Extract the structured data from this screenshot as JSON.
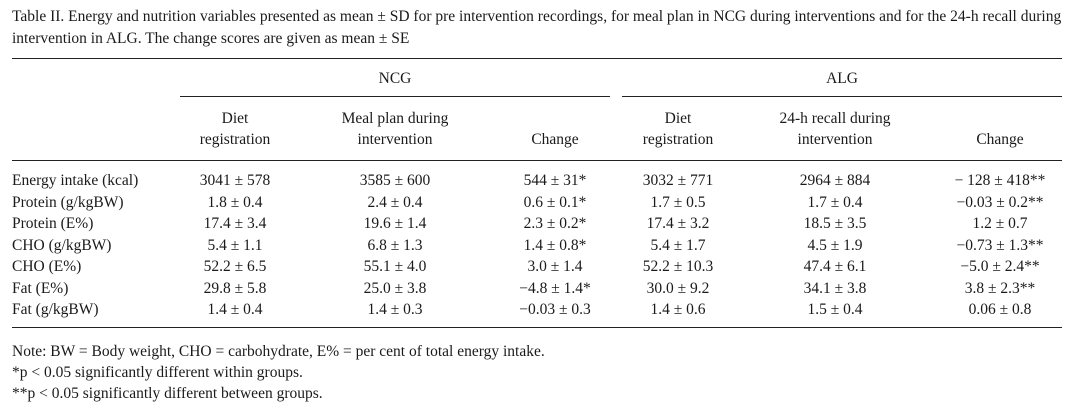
{
  "caption": "Table II. Energy and nutrition variables presented as mean ± SD for pre intervention recordings, for meal plan in NCG during interventions and for the 24-h recall during intervention in ALG. The change scores are given as mean ± SE",
  "groups": [
    "NCG",
    "ALG"
  ],
  "columns": [
    {
      "line1": "Diet",
      "line2": "registration"
    },
    {
      "line1": "Meal plan during",
      "line2": "intervention"
    },
    {
      "line1": "",
      "line2": "Change"
    },
    {
      "line1": "Diet",
      "line2": "registration"
    },
    {
      "line1": "24-h recall during",
      "line2": "intervention"
    },
    {
      "line1": "",
      "line2": "Change"
    }
  ],
  "rows": [
    {
      "label": "Energy intake (kcal)",
      "values": [
        "3041 ± 578",
        "3585 ± 600",
        "544 ± 31*",
        "3032 ± 771",
        "2964 ± 884",
        "− 128 ± 418**"
      ]
    },
    {
      "label": "Protein (g/kgBW)",
      "values": [
        "1.8 ± 0.4",
        "2.4 ± 0.4",
        "0.6 ± 0.1*",
        "1.7 ± 0.5",
        "1.7 ± 0.4",
        "−0.03 ± 0.2**"
      ]
    },
    {
      "label": "Protein (E%)",
      "values": [
        "17.4 ± 3.4",
        "19.6 ± 1.4",
        "2.3 ± 0.2*",
        "17.4 ± 3.2",
        "18.5 ± 3.5",
        "1.2 ± 0.7"
      ]
    },
    {
      "label": "CHO (g/kgBW)",
      "values": [
        "5.4 ± 1.1",
        "6.8 ± 1.3",
        "1.4 ± 0.8*",
        "5.4 ± 1.7",
        "4.5 ± 1.9",
        "−0.73 ± 1.3**"
      ]
    },
    {
      "label": "CHO (E%)",
      "values": [
        "52.2 ± 6.5",
        "55.1 ± 4.0",
        "3.0 ± 1.4",
        "52.2 ± 10.3",
        "47.4 ± 6.1",
        "−5.0 ± 2.4**"
      ]
    },
    {
      "label": "Fat (E%)",
      "values": [
        "29.8 ± 5.8",
        "25.0 ± 3.8",
        "−4.8 ± 1.4*",
        "30.0 ± 9.2",
        "34.1 ± 3.8",
        "3.8 ± 2.3**"
      ]
    },
    {
      "label": "Fat (g/kgBW)",
      "values": [
        "1.4 ± 0.4",
        "1.4 ± 0.3",
        "−0.03 ± 0.3",
        "1.4 ± 0.6",
        "1.5 ± 0.4",
        "0.06 ± 0.8"
      ]
    }
  ],
  "notes": [
    "Note: BW = Body weight, CHO = carbohydrate, E% = per cent of total energy intake.",
    "*p < 0.05 significantly different within groups.",
    "**p < 0.05 significantly different between groups."
  ]
}
